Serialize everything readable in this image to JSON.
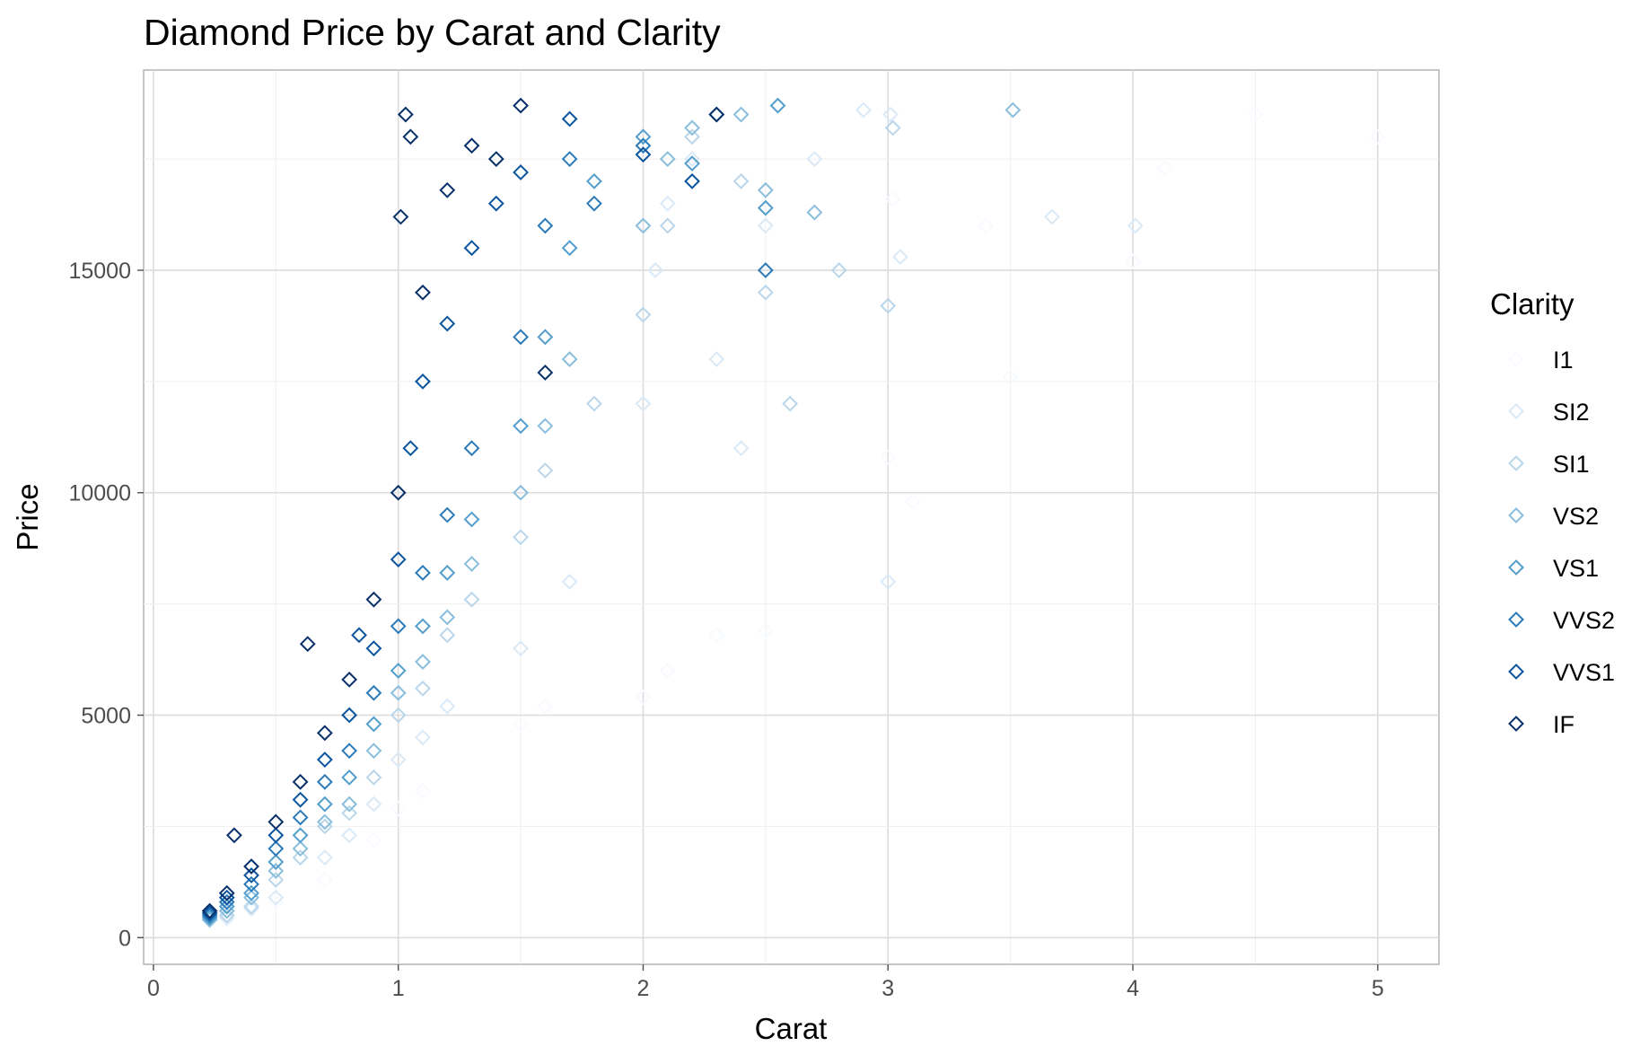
{
  "chart_data": {
    "type": "scatter",
    "title": "Diamond Price by Carat and Clarity",
    "xlabel": "Carat",
    "ylabel": "Price",
    "xlim": [
      -0.04,
      5.25
    ],
    "ylim": [
      -600,
      19500
    ],
    "x_ticks": [
      0,
      1,
      2,
      3,
      4,
      5
    ],
    "x_tick_labels": [
      "0",
      "1",
      "2",
      "3",
      "4",
      "5"
    ],
    "y_ticks": [
      0,
      5000,
      10000,
      15000
    ],
    "y_tick_labels": [
      "0",
      "5000",
      "10000",
      "15000"
    ],
    "grid": true,
    "marker": "open-diamond",
    "legend": {
      "title": "Clarity",
      "position": "right",
      "entries": [
        "I1",
        "SI2",
        "SI1",
        "VS2",
        "VS1",
        "VVS2",
        "VVS1",
        "IF"
      ]
    },
    "series": [
      {
        "name": "I1",
        "color": "#f7fbff",
        "points": [
          [
            0.3,
            400
          ],
          [
            0.5,
            800
          ],
          [
            0.7,
            1300
          ],
          [
            0.9,
            2200
          ],
          [
            1.0,
            2900
          ],
          [
            1.1,
            3300
          ],
          [
            1.5,
            4800
          ],
          [
            1.6,
            5200
          ],
          [
            2.0,
            5400
          ],
          [
            2.1,
            6000
          ],
          [
            2.3,
            6800
          ],
          [
            2.5,
            6900
          ],
          [
            3.0,
            10800
          ],
          [
            3.02,
            16600
          ],
          [
            3.1,
            9800
          ],
          [
            3.4,
            16000
          ],
          [
            3.5,
            12600
          ],
          [
            4.0,
            15200
          ],
          [
            4.5,
            18500
          ],
          [
            5.0,
            18000
          ],
          [
            4.13,
            17300
          ]
        ]
      },
      {
        "name": "SI2",
        "color": "#dbe9f6",
        "points": [
          [
            0.3,
            450
          ],
          [
            0.4,
            650
          ],
          [
            0.5,
            900
          ],
          [
            0.7,
            1800
          ],
          [
            0.8,
            2300
          ],
          [
            0.9,
            3000
          ],
          [
            1.0,
            4000
          ],
          [
            1.1,
            4500
          ],
          [
            1.2,
            5200
          ],
          [
            1.5,
            6500
          ],
          [
            1.7,
            8000
          ],
          [
            2.0,
            12000
          ],
          [
            2.05,
            15000
          ],
          [
            2.1,
            16500
          ],
          [
            2.2,
            17500
          ],
          [
            2.3,
            13000
          ],
          [
            2.5,
            16000
          ],
          [
            2.7,
            17500
          ],
          [
            2.9,
            18600
          ],
          [
            3.01,
            18500
          ],
          [
            3.05,
            15300
          ],
          [
            3.67,
            16200
          ],
          [
            4.01,
            16000
          ],
          [
            3.0,
            8000
          ],
          [
            2.4,
            11000
          ]
        ]
      },
      {
        "name": "SI1",
        "color": "#bad6eb",
        "points": [
          [
            0.3,
            500
          ],
          [
            0.4,
            700
          ],
          [
            0.5,
            1300
          ],
          [
            0.6,
            1800
          ],
          [
            0.7,
            2500
          ],
          [
            0.8,
            2800
          ],
          [
            0.9,
            3600
          ],
          [
            1.0,
            5000
          ],
          [
            1.1,
            5600
          ],
          [
            1.2,
            6800
          ],
          [
            1.3,
            7600
          ],
          [
            1.5,
            9000
          ],
          [
            1.6,
            10500
          ],
          [
            1.8,
            12000
          ],
          [
            2.0,
            14000
          ],
          [
            2.1,
            16000
          ],
          [
            2.2,
            18000
          ],
          [
            2.4,
            17000
          ],
          [
            2.5,
            14500
          ],
          [
            2.6,
            12000
          ],
          [
            2.8,
            15000
          ],
          [
            3.0,
            14200
          ],
          [
            3.02,
            18200
          ]
        ]
      },
      {
        "name": "VS2",
        "color": "#89bedc",
        "points": [
          [
            0.23,
            400
          ],
          [
            0.3,
            600
          ],
          [
            0.4,
            900
          ],
          [
            0.5,
            1500
          ],
          [
            0.6,
            2000
          ],
          [
            0.7,
            2600
          ],
          [
            0.8,
            3000
          ],
          [
            0.9,
            4200
          ],
          [
            1.0,
            5500
          ],
          [
            1.1,
            6200
          ],
          [
            1.2,
            7200
          ],
          [
            1.3,
            8400
          ],
          [
            1.5,
            10000
          ],
          [
            1.6,
            11500
          ],
          [
            1.7,
            13000
          ],
          [
            2.0,
            16000
          ],
          [
            2.1,
            17500
          ],
          [
            2.2,
            18200
          ],
          [
            2.5,
            16800
          ],
          [
            2.7,
            16300
          ],
          [
            3.51,
            18600
          ],
          [
            2.4,
            18500
          ]
        ]
      },
      {
        "name": "VS1",
        "color": "#539ecd",
        "points": [
          [
            0.23,
            450
          ],
          [
            0.3,
            700
          ],
          [
            0.4,
            1000
          ],
          [
            0.5,
            1700
          ],
          [
            0.6,
            2300
          ],
          [
            0.7,
            3000
          ],
          [
            0.8,
            3600
          ],
          [
            0.9,
            4800
          ],
          [
            1.0,
            6000
          ],
          [
            1.1,
            7000
          ],
          [
            1.2,
            8200
          ],
          [
            1.3,
            9400
          ],
          [
            1.5,
            11500
          ],
          [
            1.6,
            13500
          ],
          [
            1.7,
            15500
          ],
          [
            1.8,
            17000
          ],
          [
            2.0,
            18000
          ],
          [
            2.2,
            17400
          ],
          [
            2.55,
            18700
          ],
          [
            2.5,
            16400
          ]
        ]
      },
      {
        "name": "VVS2",
        "color": "#2b7bba",
        "points": [
          [
            0.23,
            500
          ],
          [
            0.3,
            800
          ],
          [
            0.4,
            1200
          ],
          [
            0.5,
            2000
          ],
          [
            0.6,
            2700
          ],
          [
            0.7,
            3500
          ],
          [
            0.8,
            4200
          ],
          [
            0.9,
            5500
          ],
          [
            1.0,
            7000
          ],
          [
            1.1,
            8200
          ],
          [
            1.2,
            9500
          ],
          [
            1.3,
            11000
          ],
          [
            1.5,
            13500
          ],
          [
            1.6,
            16000
          ],
          [
            1.7,
            17500
          ],
          [
            1.8,
            16500
          ],
          [
            2.0,
            17800
          ],
          [
            2.3,
            18500
          ],
          [
            2.5,
            15000
          ]
        ]
      },
      {
        "name": "VVS1",
        "color": "#0b559f",
        "points": [
          [
            0.23,
            550
          ],
          [
            0.3,
            900
          ],
          [
            0.4,
            1400
          ],
          [
            0.5,
            2300
          ],
          [
            0.6,
            3100
          ],
          [
            0.7,
            4000
          ],
          [
            0.8,
            5000
          ],
          [
            0.9,
            6500
          ],
          [
            1.0,
            8500
          ],
          [
            1.05,
            11000
          ],
          [
            1.1,
            12500
          ],
          [
            1.2,
            13800
          ],
          [
            1.3,
            15500
          ],
          [
            1.4,
            16500
          ],
          [
            1.5,
            17200
          ],
          [
            1.7,
            18400
          ],
          [
            2.0,
            17600
          ],
          [
            2.2,
            17000
          ],
          [
            0.84,
            6800
          ]
        ]
      },
      {
        "name": "IF",
        "color": "#08306b",
        "points": [
          [
            0.23,
            600
          ],
          [
            0.3,
            1000
          ],
          [
            0.33,
            2300
          ],
          [
            0.4,
            1600
          ],
          [
            0.5,
            2600
          ],
          [
            0.6,
            3500
          ],
          [
            0.63,
            6600
          ],
          [
            0.7,
            4600
          ],
          [
            0.8,
            5800
          ],
          [
            0.9,
            7600
          ],
          [
            1.0,
            10000
          ],
          [
            1.01,
            16200
          ],
          [
            1.03,
            18500
          ],
          [
            1.05,
            18000
          ],
          [
            1.1,
            14500
          ],
          [
            1.2,
            16800
          ],
          [
            1.3,
            17800
          ],
          [
            1.4,
            17500
          ],
          [
            1.5,
            18700
          ],
          [
            2.3,
            18500
          ],
          [
            1.6,
            12700
          ]
        ]
      }
    ]
  }
}
